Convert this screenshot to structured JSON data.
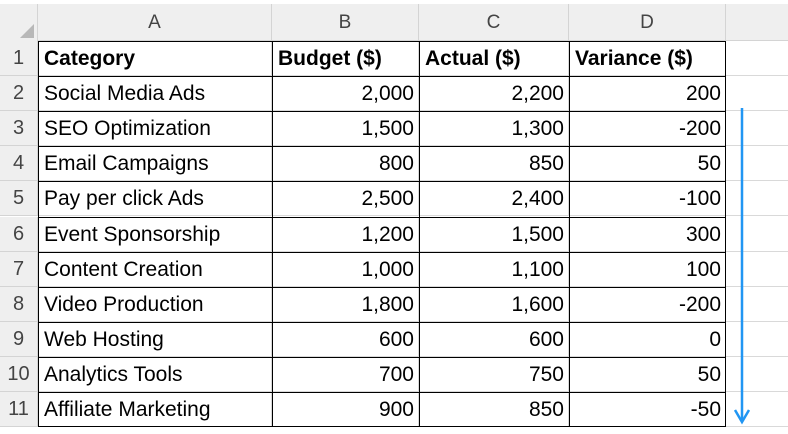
{
  "columns": [
    "A",
    "B",
    "C",
    "D"
  ],
  "header": {
    "row_number": "1",
    "category": "Category",
    "budget": "Budget ($)",
    "actual": "Actual ($)",
    "variance": "Variance ($)"
  },
  "rows": [
    {
      "row_number": "2",
      "category": "Social Media Ads",
      "budget": "2,000",
      "actual": "2,200",
      "variance": "200"
    },
    {
      "row_number": "3",
      "category": "SEO Optimization",
      "budget": "1,500",
      "actual": "1,300",
      "variance": "-200"
    },
    {
      "row_number": "4",
      "category": "Email Campaigns",
      "budget": "800",
      "actual": "850",
      "variance": "50"
    },
    {
      "row_number": "5",
      "category": "Pay per click Ads",
      "budget": "2,500",
      "actual": "2,400",
      "variance": "-100"
    },
    {
      "row_number": "6",
      "category": "Event Sponsorship",
      "budget": "1,200",
      "actual": "1,500",
      "variance": "300"
    },
    {
      "row_number": "7",
      "category": "Content Creation",
      "budget": "1,000",
      "actual": "1,100",
      "variance": "100"
    },
    {
      "row_number": "8",
      "category": "Video Production",
      "budget": "1,800",
      "actual": "1,600",
      "variance": "-200"
    },
    {
      "row_number": "9",
      "category": "Web Hosting",
      "budget": "600",
      "actual": "600",
      "variance": "0"
    },
    {
      "row_number": "10",
      "category": "Analytics Tools",
      "budget": "700",
      "actual": "750",
      "variance": "50"
    },
    {
      "row_number": "11",
      "category": "Affiliate Marketing",
      "budget": "900",
      "actual": "850",
      "variance": "-50"
    }
  ],
  "annotation": {
    "icon": "arrow-down-icon",
    "color": "#2196f3"
  },
  "colors": {
    "header_bg": "#efefef",
    "gridline": "#d9d9d9",
    "border": "#000000"
  }
}
